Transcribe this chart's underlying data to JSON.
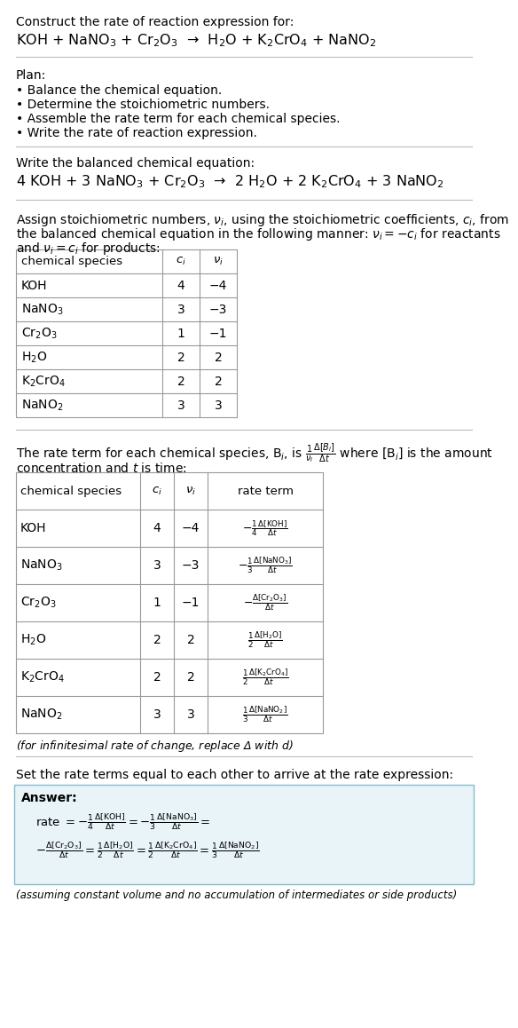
{
  "title_line1": "Construct the rate of reaction expression for:",
  "reaction_unbalanced": "KOH + NaNO$_3$ + Cr$_2$O$_3$  →  H$_2$O + K$_2$CrO$_4$ + NaNO$_2$",
  "plan_header": "Plan:",
  "plan_items": [
    "• Balance the chemical equation.",
    "• Determine the stoichiometric numbers.",
    "• Assemble the rate term for each chemical species.",
    "• Write the rate of reaction expression."
  ],
  "balanced_header": "Write the balanced chemical equation:",
  "reaction_balanced": "4 KOH + 3 NaNO$_3$ + Cr$_2$O$_3$  →  2 H$_2$O + 2 K$_2$CrO$_4$ + 3 NaNO$_2$",
  "stoich_header1": "Assign stoichiometric numbers, $\\nu_i$, using the stoichiometric coefficients, $c_i$, from",
  "stoich_header2": "the balanced chemical equation in the following manner: $\\nu_i = -c_i$ for reactants",
  "stoich_header3": "and $\\nu_i = c_i$ for products:",
  "table1_headers": [
    "chemical species",
    "$c_i$",
    "$\\nu_i$"
  ],
  "table1_data": [
    [
      "KOH",
      "4",
      "−4"
    ],
    [
      "NaNO$_3$",
      "3",
      "−3"
    ],
    [
      "Cr$_2$O$_3$",
      "1",
      "−1"
    ],
    [
      "H$_2$O",
      "2",
      "2"
    ],
    [
      "K$_2$CrO$_4$",
      "2",
      "2"
    ],
    [
      "NaNO$_2$",
      "3",
      "3"
    ]
  ],
  "rate_header1": "The rate term for each chemical species, B$_i$, is $\\frac{1}{\\nu_i}\\frac{\\Delta[B_i]}{\\Delta t}$ where [B$_i$] is the amount",
  "rate_header2": "concentration and $t$ is time:",
  "table2_headers": [
    "chemical species",
    "$c_i$",
    "$\\nu_i$",
    "rate term"
  ],
  "table2_data": [
    [
      "KOH",
      "4",
      "−4",
      "$-\\frac{1}{4}\\frac{\\Delta[\\mathrm{KOH}]}{\\Delta t}$"
    ],
    [
      "NaNO$_3$",
      "3",
      "−3",
      "$-\\frac{1}{3}\\frac{\\Delta[\\mathrm{NaNO_3}]}{\\Delta t}$"
    ],
    [
      "Cr$_2$O$_3$",
      "1",
      "−1",
      "$-\\frac{\\Delta[\\mathrm{Cr_2O_3}]}{\\Delta t}$"
    ],
    [
      "H$_2$O",
      "2",
      "2",
      "$\\frac{1}{2}\\frac{\\Delta[\\mathrm{H_2O}]}{\\Delta t}$"
    ],
    [
      "K$_2$CrO$_4$",
      "2",
      "2",
      "$\\frac{1}{2}\\frac{\\Delta[\\mathrm{K_2CrO_4}]}{\\Delta t}$"
    ],
    [
      "NaNO$_2$",
      "3",
      "3",
      "$\\frac{1}{3}\\frac{\\Delta[\\mathrm{NaNO_2}]}{\\Delta t}$"
    ]
  ],
  "infinitesimal_note": "(for infinitesimal rate of change, replace Δ with $d$)",
  "set_rate_header": "Set the rate terms equal to each other to arrive at the rate expression:",
  "answer_label": "Answer:",
  "ans_line1": "rate $= -\\frac{1}{4}\\frac{\\Delta[\\mathrm{KOH}]}{\\Delta t} = -\\frac{1}{3}\\frac{\\Delta[\\mathrm{NaNO_3}]}{\\Delta t} =$",
  "ans_line2": "$-\\frac{\\Delta[\\mathrm{Cr_2O_3}]}{\\Delta t} = \\frac{1}{2}\\frac{\\Delta[\\mathrm{H_2O}]}{\\Delta t} = \\frac{1}{2}\\frac{\\Delta[\\mathrm{K_2CrO_4}]}{\\Delta t} = \\frac{1}{3}\\frac{\\Delta[\\mathrm{NaNO_2}]}{\\Delta t}$",
  "answer_note": "(assuming constant volume and no accumulation of intermediates or side products)",
  "bg_color": "#ffffff",
  "ans_box_bg": "#e8f4f8",
  "ans_box_border": "#88bbcc",
  "table_line_color": "#999999"
}
